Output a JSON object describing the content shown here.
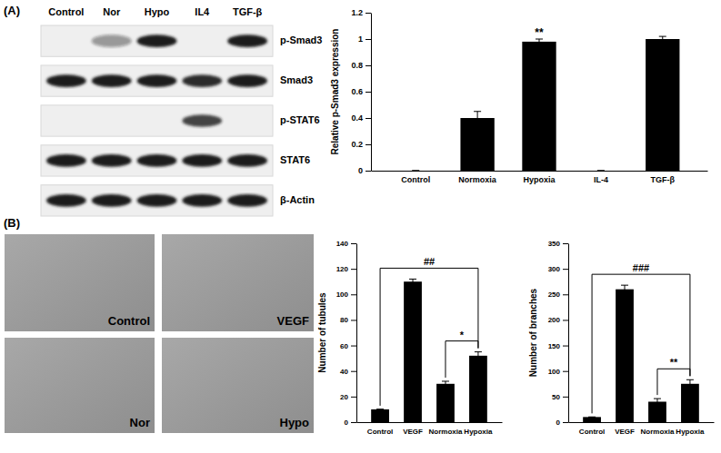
{
  "panels": [
    "(A)",
    "(B)"
  ],
  "blot": {
    "lanes": [
      "Control",
      "Nor",
      "Hypo",
      "IL4",
      "TGF-β"
    ],
    "rows": [
      {
        "label": "p-Smad3",
        "bands": [
          0,
          0.4,
          1,
          0,
          1
        ]
      },
      {
        "label": "Smad3",
        "bands": [
          1,
          1,
          1,
          0.9,
          1
        ]
      },
      {
        "label": "p-STAT6",
        "bands": [
          0,
          0,
          0,
          0.8,
          0
        ]
      },
      {
        "label": "STAT6",
        "bands": [
          1,
          1,
          1,
          1,
          1
        ]
      },
      {
        "label": "β-Actin",
        "bands": [
          1,
          1,
          1,
          1,
          1
        ]
      }
    ]
  },
  "micrographs": [
    "Control",
    "VEGF",
    "Nor",
    "Hypo"
  ],
  "chart_data": [
    {
      "type": "bar",
      "y_label": "Relative p-Smad3 expression",
      "categories": [
        "Control",
        "Normoxia",
        "Hypoxia",
        "IL-4",
        "TGF-β"
      ],
      "values": [
        0,
        0.4,
        0.98,
        0,
        1.0
      ],
      "errors": [
        0,
        0.05,
        0.02,
        0,
        0.02
      ],
      "color": "#000000",
      "ylim": [
        0,
        1.2
      ],
      "yticks": [
        0,
        0.2,
        0.4,
        0.6,
        0.8,
        1,
        1.2
      ],
      "annotations": [
        {
          "text": "**",
          "category": "Hypoxia"
        }
      ]
    },
    {
      "type": "bar",
      "y_label": "Number of tubules",
      "categories": [
        "Control",
        "VEGF",
        "Normoxia",
        "Hypoxia"
      ],
      "values": [
        10,
        110,
        30,
        52
      ],
      "errors": [
        0,
        2,
        2,
        3
      ],
      "color": "#000000",
      "ylim": [
        0,
        140
      ],
      "yticks": [
        0,
        20,
        40,
        60,
        80,
        100,
        120,
        140
      ],
      "annotations": [
        {
          "text": "##",
          "from": "Control",
          "to": "Hypoxia"
        },
        {
          "text": "*",
          "from": "Normoxia",
          "to": "Hypoxia"
        }
      ]
    },
    {
      "type": "bar",
      "y_label": "Number of branches",
      "categories": [
        "Control",
        "VEGF",
        "Normoxia",
        "Hypoxia"
      ],
      "values": [
        10,
        260,
        40,
        75
      ],
      "errors": [
        0,
        8,
        6,
        8
      ],
      "color": "#000000",
      "ylim": [
        0,
        350
      ],
      "yticks": [
        0,
        50,
        100,
        150,
        200,
        250,
        300,
        350
      ],
      "annotations": [
        {
          "text": "###",
          "from": "Control",
          "to": "Hypoxia"
        },
        {
          "text": "**",
          "from": "Normoxia",
          "to": "Hypoxia"
        }
      ]
    }
  ]
}
